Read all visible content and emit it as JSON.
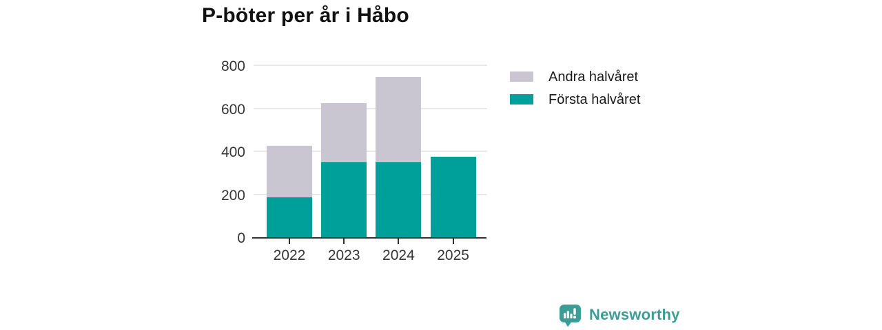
{
  "title": "P-böter per år i Håbo",
  "legend": [
    {
      "label": "Andra halvåret",
      "color": "#c9c6d2"
    },
    {
      "label": "Första halvåret",
      "color": "#00a09a"
    }
  ],
  "branding": {
    "name": "Newsworthy"
  },
  "chart_data": {
    "type": "bar",
    "stacked": true,
    "title": "P-böter per år i Håbo",
    "categories": [
      "2022",
      "2023",
      "2024",
      "2025"
    ],
    "series": [
      {
        "name": "Första halvåret",
        "color": "#00a09a",
        "values": [
          185,
          350,
          350,
          375
        ]
      },
      {
        "name": "Andra halvåret",
        "color": "#c9c6d2",
        "values": [
          240,
          275,
          395,
          0
        ]
      }
    ],
    "totals": [
      425,
      625,
      745,
      375
    ],
    "xlabel": "",
    "ylabel": "",
    "ylim": [
      0,
      800
    ],
    "yticks": [
      0,
      200,
      400,
      600,
      800
    ],
    "grid": true,
    "legend_position": "right",
    "axis_color": "#303030",
    "grid_color": "#e8e8e8",
    "tick_label_color": "#363636"
  }
}
